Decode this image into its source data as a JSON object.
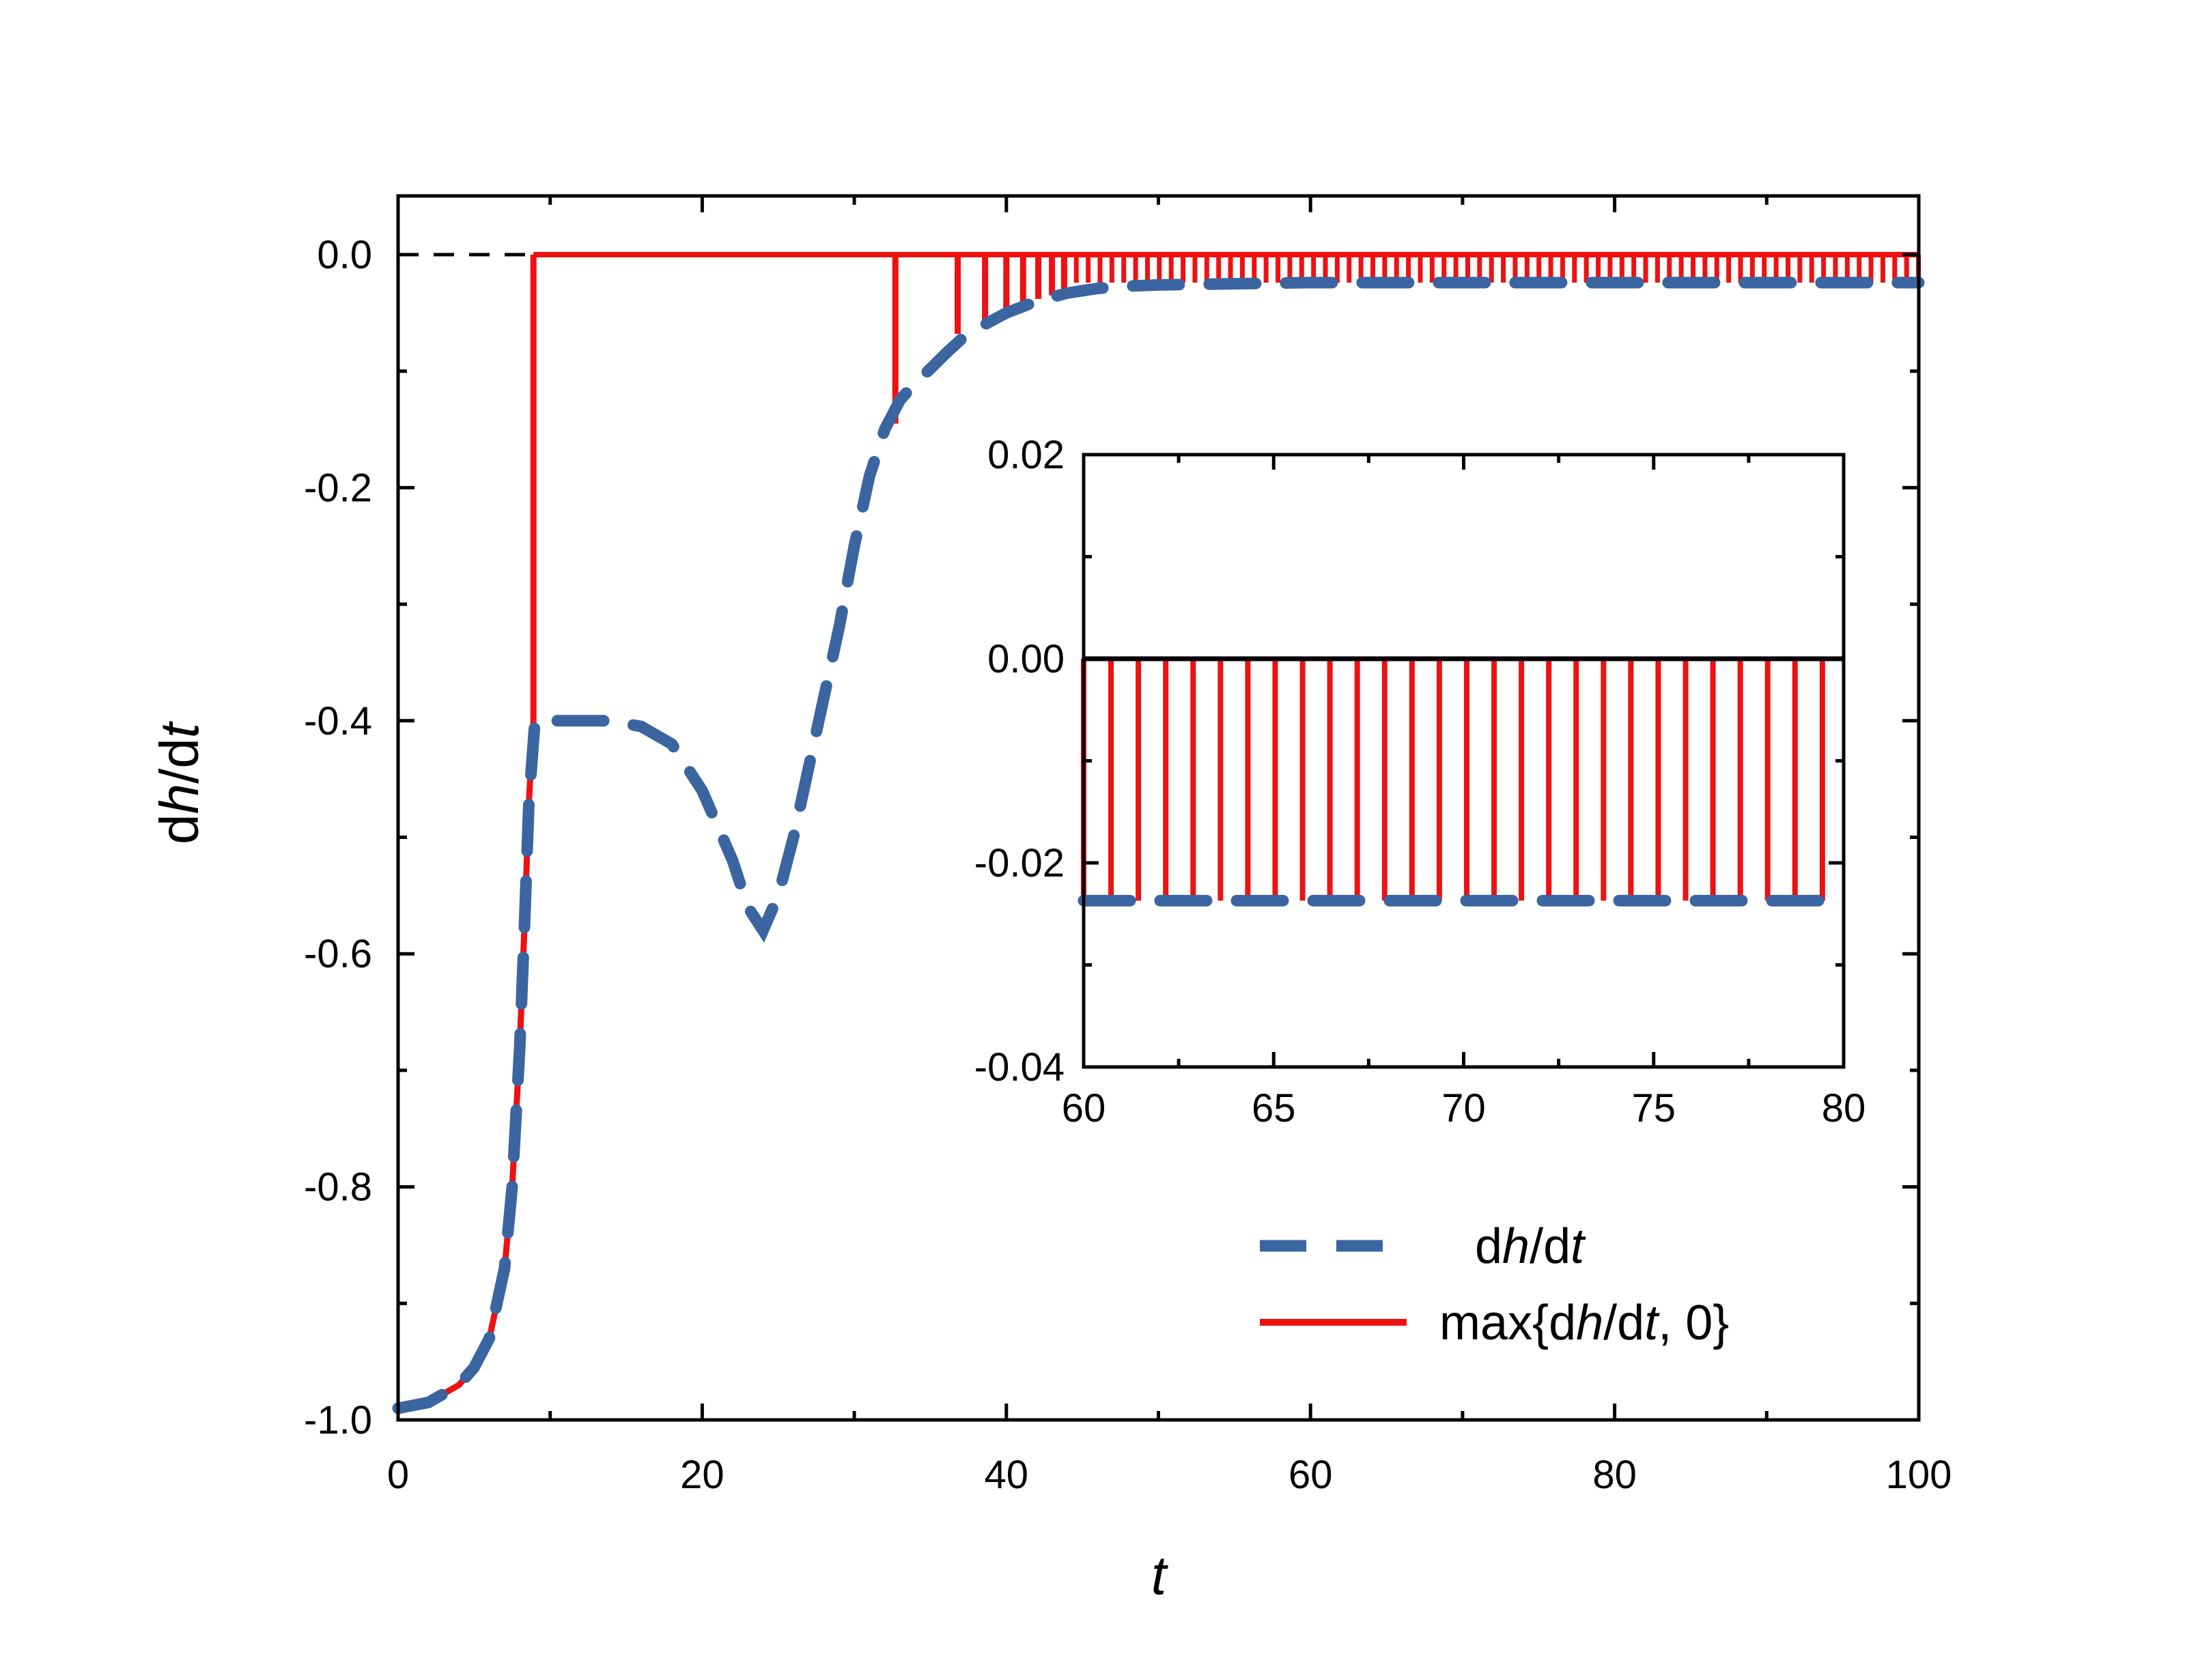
{
  "chart_data": {
    "type": "line",
    "main": {
      "xlabel": "t",
      "ylabel": {
        "prefix": "d",
        "var": "h",
        "mid": "/d",
        "var2": "t"
      },
      "xlim": [
        0,
        100
      ],
      "ylim": [
        -1.0,
        0.05
      ],
      "xticks": [
        0,
        20,
        40,
        60,
        80,
        100
      ],
      "xtick_labels": [
        "0",
        "20",
        "40",
        "60",
        "80",
        "100"
      ],
      "yticks": [
        -1.0,
        -0.8,
        -0.6,
        -0.4,
        -0.2,
        0.0
      ],
      "ytick_labels": [
        "-1.0",
        "-0.8",
        "-0.6",
        "-0.4",
        "-0.2",
        "0.0"
      ],
      "grid": false
    },
    "series": [
      {
        "name": "dh/dt",
        "style": "dashed",
        "color": "#3A65A0",
        "x": [
          0,
          2,
          4,
          5,
          6,
          7,
          7.5,
          8,
          8.3,
          8.6,
          9,
          10,
          12,
          14,
          16,
          18,
          20,
          22,
          23,
          24,
          25,
          26,
          27,
          28,
          29,
          30,
          31,
          32,
          33,
          34,
          35,
          36,
          37,
          38,
          40,
          42,
          44,
          46,
          48,
          50,
          55,
          60,
          100
        ],
        "y": [
          -0.99,
          -0.985,
          -0.97,
          -0.955,
          -0.93,
          -0.87,
          -0.8,
          -0.68,
          -0.58,
          -0.47,
          -0.4,
          -0.4,
          -0.4,
          -0.4,
          -0.405,
          -0.42,
          -0.46,
          -0.52,
          -0.56,
          -0.58,
          -0.55,
          -0.5,
          -0.44,
          -0.38,
          -0.32,
          -0.25,
          -0.19,
          -0.15,
          -0.125,
          -0.11,
          -0.098,
          -0.085,
          -0.073,
          -0.064,
          -0.05,
          -0.04,
          -0.033,
          -0.029,
          -0.027,
          -0.026,
          -0.025,
          -0.024,
          -0.024
        ]
      },
      {
        "name": "max{dh/dt, 0}",
        "style": "solid",
        "color": "#EE1111",
        "x": [
          0,
          2,
          4,
          5,
          6,
          7,
          7.5,
          8,
          8.3,
          8.6,
          8.9
        ],
        "y": [
          -0.99,
          -0.985,
          -0.97,
          -0.955,
          -0.93,
          -0.87,
          -0.8,
          -0.68,
          -0.58,
          -0.47,
          -0.4
        ],
        "spikes": [
          {
            "t": 8.9,
            "v": -0.4
          },
          {
            "t": 32.7,
            "v": -0.145
          },
          {
            "t": 36.8,
            "v": -0.068
          },
          {
            "t": 38.6,
            "v": -0.057
          },
          {
            "t": 40.0,
            "v": -0.048
          },
          {
            "t": 41.1,
            "v": -0.042
          },
          {
            "t": 42.1,
            "v": -0.038
          },
          {
            "t": 43.0,
            "v": -0.035
          },
          {
            "t": 43.8,
            "v": -0.032
          }
        ],
        "spikes_after_start": 44.6,
        "spikes_after_interval": 0.78,
        "spikes_after_value": -0.024
      }
    ],
    "reference_line": {
      "y": 0.0,
      "style": "dashed",
      "color": "#000000"
    },
    "legend": {
      "position": "lower-right",
      "entries": [
        {
          "label_prefix": "d",
          "label_var": "h",
          "label_mid": "/d",
          "label_var2": "t",
          "label_suffix": ""
        },
        {
          "label_prefix": "max{d",
          "label_var": "h",
          "label_mid": "/d",
          "label_var2": "t",
          "label_suffix": ", 0}"
        }
      ]
    },
    "inset": {
      "xlim": [
        60,
        80
      ],
      "ylim": [
        -0.04,
        0.02
      ],
      "xticks": [
        60,
        65,
        70,
        75,
        80
      ],
      "xtick_labels": [
        "60",
        "65",
        "70",
        "75",
        "80"
      ],
      "yticks": [
        -0.04,
        -0.02,
        0.0,
        0.02
      ],
      "ytick_labels": [
        "-0.04",
        "-0.02",
        "0.00",
        "0.02"
      ],
      "baseline_value": 0.0,
      "spike_value": -0.0237,
      "spike_start": 60.0,
      "spike_interval": 0.72
    }
  }
}
